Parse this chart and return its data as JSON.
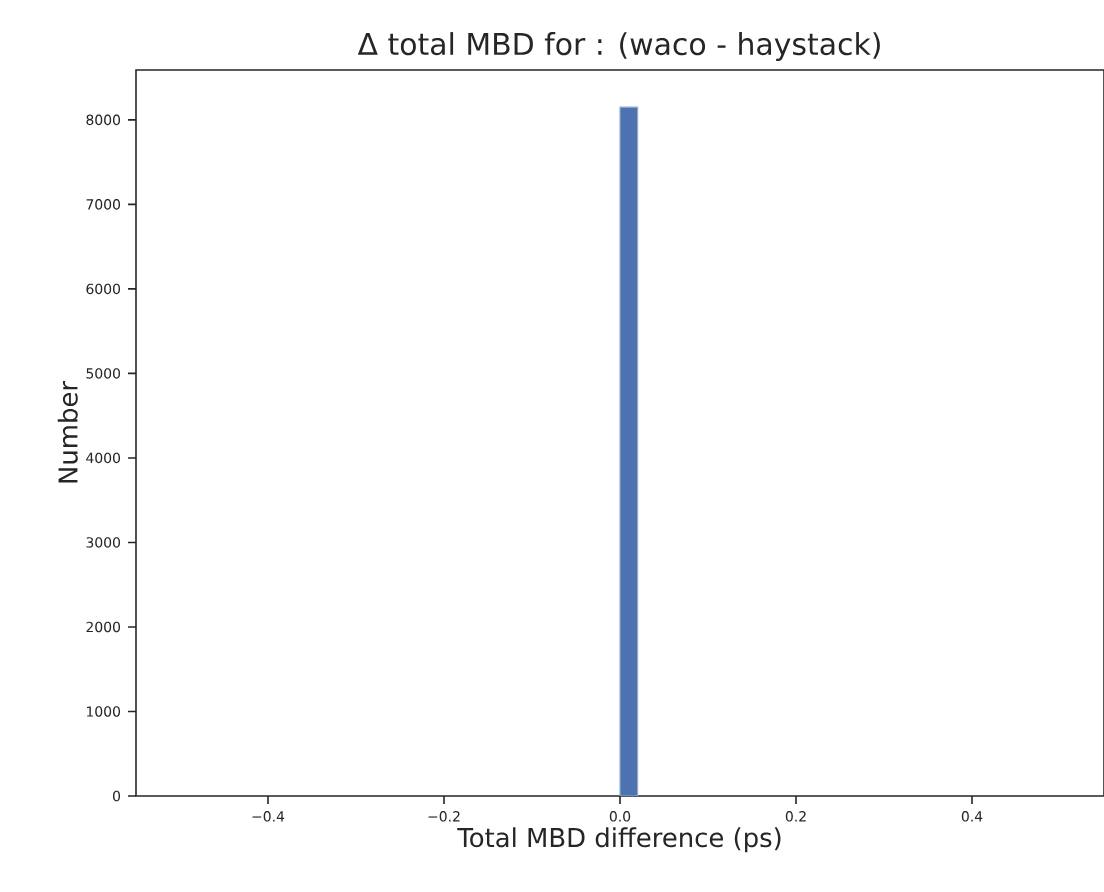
{
  "chart_data": {
    "type": "histogram",
    "title": "Δ total MBD for : (waco - haystack)",
    "xlabel": "Total MBD difference (ps)",
    "ylabel": "Number",
    "bins": [
      0.0,
      0.02
    ],
    "values": [
      8150
    ],
    "color": "#4c72b0",
    "xlim": [
      -0.55,
      0.55
    ],
    "xticks": [
      {
        "value": -0.4,
        "label": "−0.4"
      },
      {
        "value": -0.2,
        "label": "−0.2"
      },
      {
        "value": 0.0,
        "label": "0.0"
      },
      {
        "value": 0.2,
        "label": "0.2"
      },
      {
        "value": 0.4,
        "label": "0.4"
      }
    ],
    "ylim": [
      0,
      8590
    ],
    "yticks": [
      0,
      1000,
      2000,
      3000,
      4000,
      5000,
      6000,
      7000,
      8000
    ],
    "grid": false
  }
}
